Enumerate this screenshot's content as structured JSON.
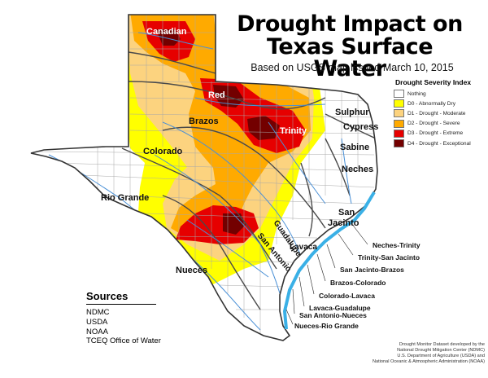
{
  "title_line1": "Drought Impact on",
  "title_line2": "Texas Surface Water",
  "subtitle": "Based on USGS map issued March 10, 2015",
  "legend": {
    "title": "Drought Severity Index",
    "items": [
      {
        "label": "Nothing",
        "color": "#ffffff"
      },
      {
        "label": "D0 - Abnormally Dry",
        "color": "#ffff00"
      },
      {
        "label": "D1 - Drought - Moderate",
        "color": "#fcd37f"
      },
      {
        "label": "D2 - Drought - Severe",
        "color": "#ffaa00"
      },
      {
        "label": "D3 - Drought - Extreme",
        "color": "#e60000"
      },
      {
        "label": "D4 - Drought - Exceptional",
        "color": "#730000"
      }
    ]
  },
  "basins": {
    "canadian": "Canadian",
    "red": "Red",
    "brazos": "Brazos",
    "trinity": "Trinity",
    "sulphur": "Sulphur",
    "cypress": "Cypress",
    "sabine": "Sabine",
    "colorado": "Colorado",
    "neches": "Neches",
    "rio_grande": "Rio Grande",
    "san_jacinto_1": "San",
    "san_jacinto_2": "Jacinto",
    "guadalupe": "Guadalupe",
    "san_antonio": "San Antonio",
    "lavaca": "Lavaca",
    "nueces": "Nueces"
  },
  "coastal_basins": [
    "Neches-Trinity",
    "Trinity-San Jacinto",
    "San Jacinto-Brazos",
    "Brazos-Colorado",
    "Colorado-Lavaca",
    "Lavaca-Guadalupe",
    "San Antonio-Nueces",
    "Nueces-Rio Grande"
  ],
  "sources": {
    "title": "Sources",
    "items": [
      "NDMC",
      "USDA",
      "NOAA",
      "TCEQ Office of Water"
    ]
  },
  "credits": [
    "Drought Monitor Dataset developed by the",
    "National Drought Mitigation Center (NDMC)",
    "U.S. Department of Agriculture (USDA) and",
    "National Oceanic & Atmospheric Administration (NOAA)"
  ]
}
